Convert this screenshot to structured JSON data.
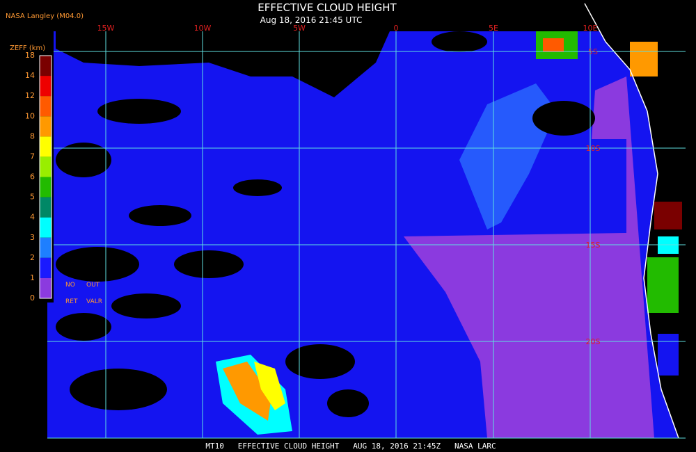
{
  "header": {
    "title": "EFFECTIVE CLOUD HEIGHT",
    "subtitle": "Aug 18, 2016 21:45 UTC",
    "source": "NASA Langley (M04.0)"
  },
  "legend": {
    "title": "ZEFF (km)",
    "labels": [
      "18",
      "14",
      "12",
      "10",
      "8",
      "7",
      "6",
      "5",
      "4",
      "3",
      "2",
      "1",
      "0"
    ],
    "colors": [
      "#7a0000",
      "#ee0000",
      "#ff5a00",
      "#ff9900",
      "#ffff00",
      "#99ee00",
      "#22bb00",
      "#008866",
      "#00ffff",
      "#1e7fff",
      "#1a1aff",
      "#8b3adf"
    ],
    "notes": [
      "NO",
      "OUT",
      "RET",
      "VALR"
    ]
  },
  "map": {
    "longitude_labels": [
      "15W",
      "10W",
      "5W",
      "0",
      "5E",
      "10E"
    ],
    "latitude_labels": [
      "5S",
      "10S",
      "15S",
      "20S"
    ]
  },
  "footer": "MT10   EFFECTIVE CLOUD HEIGHT   AUG 18, 2016 21:45Z   NASA LARC"
}
